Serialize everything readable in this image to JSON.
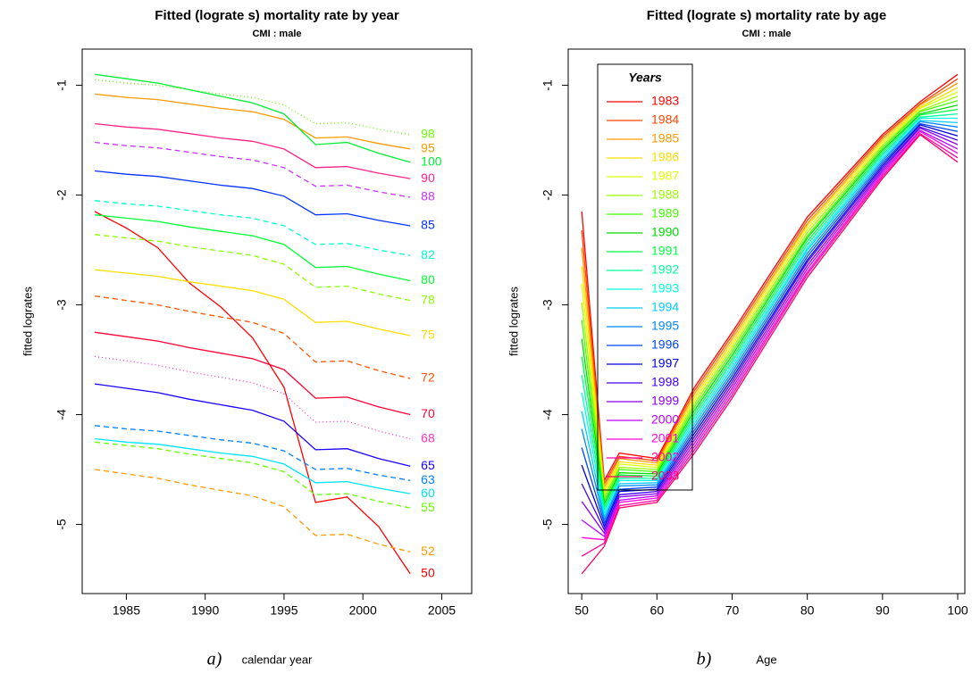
{
  "chart_data": [
    {
      "type": "line",
      "title": "Fitted (lograte s) mortality rate by year",
      "subtitle": "CMI : male",
      "x_label": "calendar year",
      "panel_label": "a)",
      "y_label": "fitted logrates",
      "x": [
        1983,
        1985,
        1987,
        1989,
        1991,
        1993,
        1995,
        1997,
        1999,
        2001,
        2003
      ],
      "xlim": [
        1982.2,
        2006.9
      ],
      "xticks": [
        1985,
        1990,
        1995,
        2000,
        2005
      ],
      "ylim": [
        -5.63,
        -0.67
      ],
      "yticks": [
        -5,
        -4,
        -3,
        -2,
        -1
      ],
      "end_labels": true,
      "series": [
        {
          "name": "50",
          "color": "#ff0000",
          "dash": "solid",
          "values": [
            -2.15,
            -2.3,
            -2.48,
            -2.8,
            -3.02,
            -3.3,
            -3.75,
            -4.8,
            -4.75,
            -5.02,
            -5.45
          ]
        },
        {
          "name": "52",
          "color": "#ff9900",
          "dash": "dashed",
          "values": [
            -4.5,
            -4.54,
            -4.58,
            -4.64,
            -4.69,
            -4.74,
            -4.84,
            -5.1,
            -5.09,
            -5.18,
            -5.25
          ]
        },
        {
          "name": "55",
          "color": "#66ff00",
          "dash": "dashed",
          "values": [
            -4.25,
            -4.28,
            -4.31,
            -4.36,
            -4.4,
            -4.44,
            -4.52,
            -4.73,
            -4.72,
            -4.79,
            -4.85
          ]
        },
        {
          "name": "60",
          "color": "#00e5ff",
          "dash": "solid",
          "values": [
            -4.22,
            -4.25,
            -4.27,
            -4.31,
            -4.35,
            -4.38,
            -4.45,
            -4.62,
            -4.61,
            -4.67,
            -4.72
          ]
        },
        {
          "name": "63",
          "color": "#0080ff",
          "dash": "dashed",
          "values": [
            -4.1,
            -4.13,
            -4.15,
            -4.19,
            -4.23,
            -4.26,
            -4.33,
            -4.5,
            -4.49,
            -4.55,
            -4.6
          ]
        },
        {
          "name": "65",
          "color": "#1a00ff",
          "dash": "solid",
          "values": [
            -3.72,
            -3.76,
            -3.8,
            -3.86,
            -3.91,
            -3.96,
            -4.06,
            -4.32,
            -4.31,
            -4.4,
            -4.47
          ]
        },
        {
          "name": "68",
          "color": "#ff33cc",
          "dash": "dotted",
          "values": [
            -3.47,
            -3.51,
            -3.55,
            -3.61,
            -3.66,
            -3.71,
            -3.81,
            -4.07,
            -4.06,
            -4.15,
            -4.22
          ]
        },
        {
          "name": "70",
          "color": "#ff0033",
          "dash": "solid",
          "values": [
            -3.25,
            -3.29,
            -3.33,
            -3.39,
            -3.44,
            -3.49,
            -3.59,
            -3.85,
            -3.84,
            -3.93,
            -4.0
          ]
        },
        {
          "name": "72",
          "color": "#ff5500",
          "dash": "dashed",
          "values": [
            -2.92,
            -2.96,
            -3.0,
            -3.06,
            -3.11,
            -3.16,
            -3.26,
            -3.52,
            -3.51,
            -3.6,
            -3.67
          ]
        },
        {
          "name": "75",
          "color": "#ffdd00",
          "dash": "solid",
          "values": [
            -2.68,
            -2.71,
            -2.74,
            -2.79,
            -2.83,
            -2.87,
            -2.95,
            -3.16,
            -3.15,
            -3.22,
            -3.28
          ]
        },
        {
          "name": "78",
          "color": "#88ff00",
          "dash": "dashed",
          "values": [
            -2.36,
            -2.39,
            -2.42,
            -2.47,
            -2.51,
            -2.55,
            -2.63,
            -2.84,
            -2.83,
            -2.9,
            -2.96
          ]
        },
        {
          "name": "80",
          "color": "#00ff33",
          "dash": "solid",
          "values": [
            -2.18,
            -2.21,
            -2.24,
            -2.29,
            -2.33,
            -2.37,
            -2.45,
            -2.66,
            -2.65,
            -2.72,
            -2.78
          ]
        },
        {
          "name": "82",
          "color": "#00ffcc",
          "dash": "dashed",
          "values": [
            -2.05,
            -2.08,
            -2.1,
            -2.14,
            -2.18,
            -2.21,
            -2.28,
            -2.45,
            -2.44,
            -2.5,
            -2.55
          ]
        },
        {
          "name": "85",
          "color": "#0033ff",
          "dash": "solid",
          "values": [
            -1.78,
            -1.81,
            -1.83,
            -1.87,
            -1.91,
            -1.94,
            -2.01,
            -2.18,
            -2.17,
            -2.23,
            -2.28
          ]
        },
        {
          "name": "88",
          "color": "#cc33ff",
          "dash": "dashed",
          "values": [
            -1.52,
            -1.55,
            -1.57,
            -1.61,
            -1.65,
            -1.68,
            -1.75,
            -1.92,
            -1.91,
            -1.97,
            -2.02
          ]
        },
        {
          "name": "90",
          "color": "#ff2288",
          "dash": "solid",
          "values": [
            -1.35,
            -1.38,
            -1.4,
            -1.44,
            -1.48,
            -1.51,
            -1.58,
            -1.75,
            -1.74,
            -1.8,
            -1.85
          ]
        },
        {
          "name": "95",
          "color": "#ff9900",
          "dash": "solid",
          "values": [
            -1.08,
            -1.11,
            -1.13,
            -1.17,
            -1.21,
            -1.24,
            -1.31,
            -1.48,
            -1.47,
            -1.53,
            -1.58
          ]
        },
        {
          "name": "98",
          "color": "#66ff00",
          "dash": "dotted",
          "values": [
            -0.95,
            -0.98,
            -1.0,
            -1.04,
            -1.08,
            -1.11,
            -1.18,
            -1.35,
            -1.34,
            -1.4,
            -1.45
          ]
        },
        {
          "name": "100",
          "color": "#00ee33",
          "dash": "solid",
          "values": [
            -0.9,
            -0.94,
            -0.98,
            -1.04,
            -1.1,
            -1.16,
            -1.26,
            -1.54,
            -1.52,
            -1.62,
            -1.7
          ]
        }
      ]
    },
    {
      "type": "line",
      "title": "Fitted (lograte s) mortality rate by age",
      "subtitle": "CMI : male",
      "x_label": "Age",
      "panel_label": "b)",
      "y_label": "fitted logrates",
      "legend_title": "Years",
      "legend": "top-left",
      "x": [
        50,
        53,
        55,
        60,
        65,
        70,
        80,
        90,
        95,
        100
      ],
      "xlim": [
        48.2,
        100.95
      ],
      "xticks": [
        50,
        60,
        70,
        80,
        90,
        100
      ],
      "ylim": [
        -5.63,
        -0.67
      ],
      "yticks": [
        -5,
        -4,
        -3,
        -2,
        -1
      ],
      "series": [
        {
          "name": "1983",
          "color": "#ff0000",
          "values": [
            -2.15,
            -4.6,
            -4.35,
            -4.4,
            -3.75,
            -3.25,
            -2.2,
            -1.45,
            -1.15,
            -0.9
          ]
        },
        {
          "name": "1984",
          "color": "#ff4400",
          "values": [
            -2.32,
            -4.63,
            -4.38,
            -4.42,
            -3.78,
            -3.28,
            -2.23,
            -1.47,
            -1.17,
            -0.94
          ]
        },
        {
          "name": "1985",
          "color": "#ff9900",
          "values": [
            -2.48,
            -4.66,
            -4.4,
            -4.44,
            -3.81,
            -3.31,
            -2.26,
            -1.49,
            -1.18,
            -0.98
          ]
        },
        {
          "name": "1986",
          "color": "#ffdd00",
          "values": [
            -2.65,
            -4.69,
            -4.43,
            -4.46,
            -3.84,
            -3.34,
            -2.28,
            -1.51,
            -1.2,
            -1.02
          ]
        },
        {
          "name": "1987",
          "color": "#ddff00",
          "values": [
            -2.81,
            -4.72,
            -4.45,
            -4.48,
            -3.87,
            -3.37,
            -2.31,
            -1.53,
            -1.21,
            -1.06
          ]
        },
        {
          "name": "1988",
          "color": "#99ff00",
          "values": [
            -2.98,
            -4.75,
            -4.48,
            -4.5,
            -3.9,
            -3.4,
            -2.34,
            -1.55,
            -1.23,
            -1.1
          ]
        },
        {
          "name": "1989",
          "color": "#44ff00",
          "values": [
            -3.14,
            -4.78,
            -4.5,
            -4.52,
            -3.93,
            -3.43,
            -2.37,
            -1.57,
            -1.24,
            -1.14
          ]
        },
        {
          "name": "1990",
          "color": "#00dd00",
          "values": [
            -3.31,
            -4.81,
            -4.53,
            -4.54,
            -3.96,
            -3.46,
            -2.39,
            -1.59,
            -1.26,
            -1.18
          ]
        },
        {
          "name": "1991",
          "color": "#00ff44",
          "values": [
            -3.47,
            -4.84,
            -4.55,
            -4.56,
            -3.99,
            -3.49,
            -2.42,
            -1.61,
            -1.27,
            -1.22
          ]
        },
        {
          "name": "1992",
          "color": "#00ff99",
          "values": [
            -3.64,
            -4.87,
            -4.58,
            -4.58,
            -4.02,
            -3.52,
            -2.45,
            -1.63,
            -1.29,
            -1.26
          ]
        },
        {
          "name": "1993",
          "color": "#00ffdd",
          "values": [
            -3.8,
            -4.9,
            -4.6,
            -4.6,
            -4.05,
            -3.55,
            -2.48,
            -1.65,
            -1.3,
            -1.3
          ]
        },
        {
          "name": "1994",
          "color": "#00ccff",
          "values": [
            -3.97,
            -4.93,
            -4.63,
            -4.62,
            -4.08,
            -3.58,
            -2.5,
            -1.67,
            -1.32,
            -1.34
          ]
        },
        {
          "name": "1995",
          "color": "#0088ff",
          "values": [
            -4.13,
            -4.96,
            -4.65,
            -4.64,
            -4.11,
            -3.61,
            -2.53,
            -1.69,
            -1.33,
            -1.38
          ]
        },
        {
          "name": "1996",
          "color": "#0044ff",
          "values": [
            -4.3,
            -4.99,
            -4.68,
            -4.66,
            -4.14,
            -3.64,
            -2.56,
            -1.71,
            -1.35,
            -1.42
          ]
        },
        {
          "name": "1997",
          "color": "#0000dd",
          "values": [
            -4.46,
            -5.02,
            -4.7,
            -4.68,
            -4.17,
            -3.67,
            -2.59,
            -1.73,
            -1.36,
            -1.46
          ]
        },
        {
          "name": "1998",
          "color": "#4400ff",
          "values": [
            -4.63,
            -5.05,
            -4.73,
            -4.7,
            -4.2,
            -3.7,
            -2.61,
            -1.75,
            -1.38,
            -1.5
          ]
        },
        {
          "name": "1999",
          "color": "#8800ee",
          "values": [
            -4.79,
            -5.08,
            -4.75,
            -4.72,
            -4.23,
            -3.73,
            -2.64,
            -1.77,
            -1.39,
            -1.54
          ]
        },
        {
          "name": "2000",
          "color": "#bb00ff",
          "values": [
            -4.96,
            -5.11,
            -4.78,
            -4.74,
            -4.26,
            -3.76,
            -2.67,
            -1.79,
            -1.41,
            -1.58
          ]
        },
        {
          "name": "2001",
          "color": "#ff00dd",
          "values": [
            -5.12,
            -5.14,
            -4.8,
            -4.76,
            -4.29,
            -3.79,
            -2.7,
            -1.81,
            -1.42,
            -1.62
          ]
        },
        {
          "name": "2002",
          "color": "#ff00aa",
          "values": [
            -5.29,
            -5.17,
            -4.83,
            -4.78,
            -4.32,
            -3.82,
            -2.72,
            -1.83,
            -1.44,
            -1.66
          ]
        },
        {
          "name": "2003",
          "color": "#ff0066",
          "values": [
            -5.45,
            -5.2,
            -4.85,
            -4.8,
            -4.35,
            -3.85,
            -2.75,
            -1.85,
            -1.45,
            -1.7
          ]
        }
      ]
    }
  ]
}
